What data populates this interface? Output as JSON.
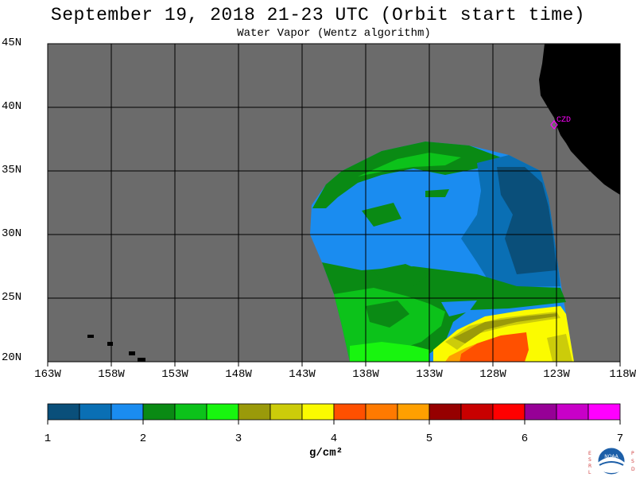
{
  "title": "September 19, 2018  21-23 UTC  (Orbit start time)",
  "subtitle": "Water Vapor (Wentz algorithm)",
  "lat_labels": [
    "45N",
    "40N",
    "35N",
    "30N",
    "25N",
    "20N"
  ],
  "lon_labels": [
    "163W",
    "158W",
    "153W",
    "148W",
    "143W",
    "138W",
    "133W",
    "128W",
    "123W",
    "118W"
  ],
  "station_label": "CZD",
  "colorbar": {
    "ticks": [
      "1",
      "2",
      "3",
      "4",
      "5",
      "6",
      "7"
    ],
    "units": "g/cm²",
    "colors": [
      "#0a4f7a",
      "#0a6fb4",
      "#1a8cf0",
      "#0a8a14",
      "#0cc21a",
      "#18f50f",
      "#9a9a0a",
      "#cccc0a",
      "#fbfb00",
      "#ff5000",
      "#ff7a00",
      "#ffa000",
      "#960000",
      "#c80000",
      "#ff0000",
      "#960096",
      "#c800c8",
      "#ff00ff"
    ]
  },
  "logo_letters": {
    "left": "ESRL",
    "right": "PSD",
    "center": "NOAA"
  },
  "colors": {
    "land": "#000000",
    "no_data": "#6b6b6b",
    "station": "#ff00ff"
  }
}
